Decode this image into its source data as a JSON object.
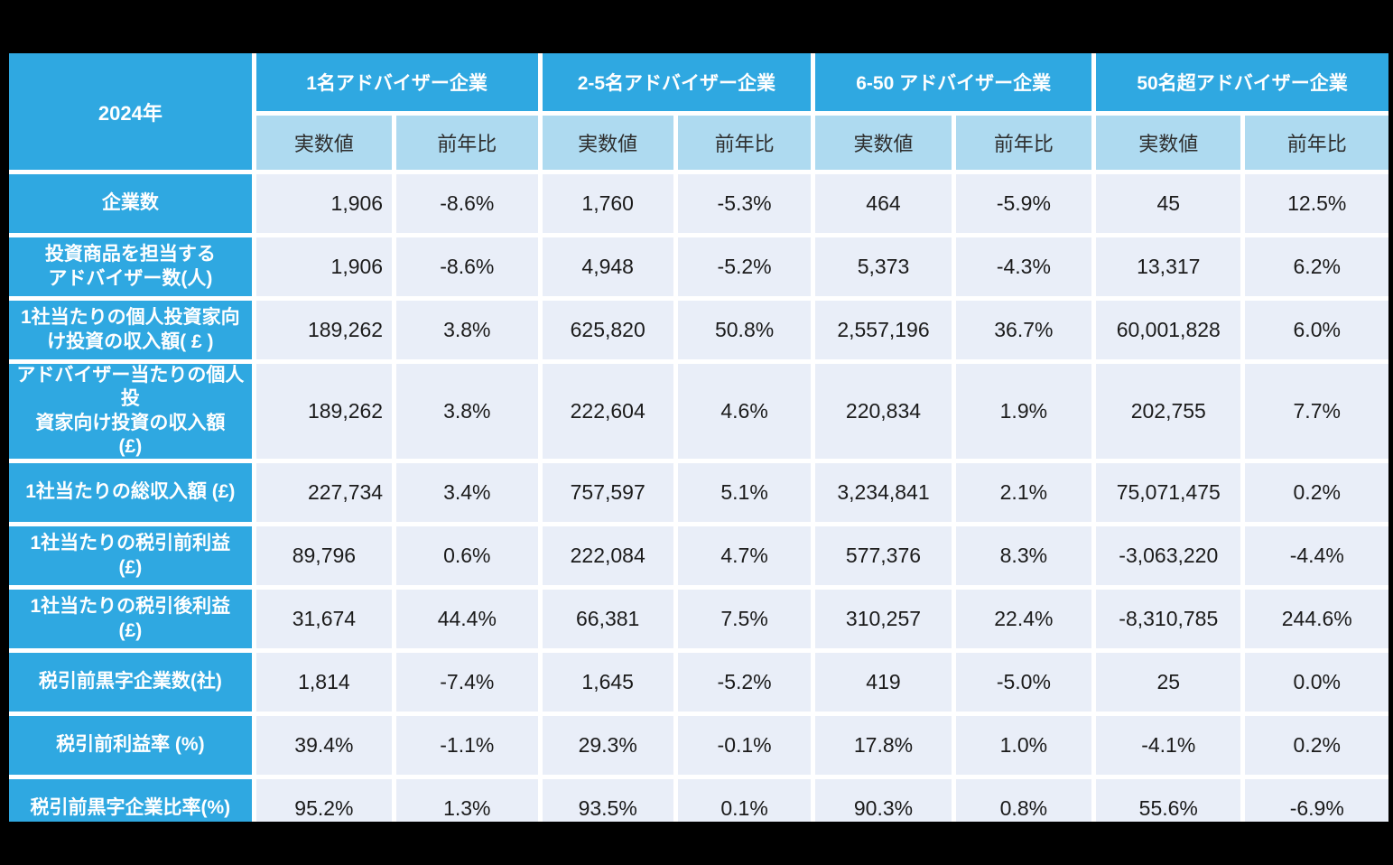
{
  "chart_data": {
    "type": "table",
    "title": "2024年",
    "column_groups": [
      {
        "label": "1名アドバイザー企業"
      },
      {
        "label": "2-5名アドバイザー企業"
      },
      {
        "label": "6-50 アドバイザー企業"
      },
      {
        "label": "50名超アドバイザー企業"
      }
    ],
    "sub_columns": [
      "実数値",
      "前年比"
    ],
    "rows": [
      {
        "label": "企業数",
        "values": [
          "1,906",
          "-8.6%",
          "1,760",
          "-5.3%",
          "464",
          "-5.9%",
          "45",
          "12.5%"
        ]
      },
      {
        "label": "投資商品を担当する\nアドバイザー数(人)",
        "values": [
          "1,906",
          "-8.6%",
          "4,948",
          "-5.2%",
          "5,373",
          "-4.3%",
          "13,317",
          "6.2%"
        ]
      },
      {
        "label": "1社当たりの個人投資家向\nけ投資の収入額( £ )",
        "values": [
          "189,262",
          "3.8%",
          "625,820",
          "50.8%",
          "2,557,196",
          "36.7%",
          "60,001,828",
          "6.0%"
        ]
      },
      {
        "label": "アドバイザー当たりの個人投\n資家向け投資の収入額\n(£)",
        "values": [
          "189,262",
          "3.8%",
          "222,604",
          "4.6%",
          "220,834",
          "1.9%",
          "202,755",
          "7.7%"
        ]
      },
      {
        "label": "1社当たりの総収入額 (£)",
        "values": [
          "227,734",
          "3.4%",
          "757,597",
          "5.1%",
          "3,234,841",
          "2.1%",
          "75,071,475",
          "0.2%"
        ]
      },
      {
        "label": "1社当たりの税引前利益\n(£)",
        "values": [
          "89,796",
          "0.6%",
          "222,084",
          "4.7%",
          "577,376",
          "8.3%",
          "-3,063,220",
          "-4.4%"
        ]
      },
      {
        "label": "1社当たりの税引後利益\n(£)",
        "values": [
          "31,674",
          "44.4%",
          "66,381",
          "7.5%",
          "310,257",
          "22.4%",
          "-8,310,785",
          "244.6%"
        ]
      },
      {
        "label": "税引前黒字企業数(社)",
        "values": [
          "1,814",
          "-7.4%",
          "1,645",
          "-5.2%",
          "419",
          "-5.0%",
          "25",
          "0.0%"
        ]
      },
      {
        "label": "税引前利益率 (%)",
        "values": [
          "39.4%",
          "-1.1%",
          "29.3%",
          "-0.1%",
          "17.8%",
          "1.0%",
          "-4.1%",
          "0.2%"
        ]
      },
      {
        "label": "税引前黒字企業比率(%)",
        "values": [
          "95.2%",
          "1.3%",
          "93.5%",
          "0.1%",
          "90.3%",
          "0.8%",
          "55.6%",
          "-6.9%"
        ]
      }
    ]
  },
  "colors": {
    "page_bg": "#000000",
    "header_blue": "#2FA8E1",
    "subheader_blue": "#AEDAF0",
    "cell_bg": "#E9EEF8",
    "grid_white": "#FFFFFF",
    "header_text": "#FFFFFF",
    "data_text": "#1B1B1B"
  }
}
